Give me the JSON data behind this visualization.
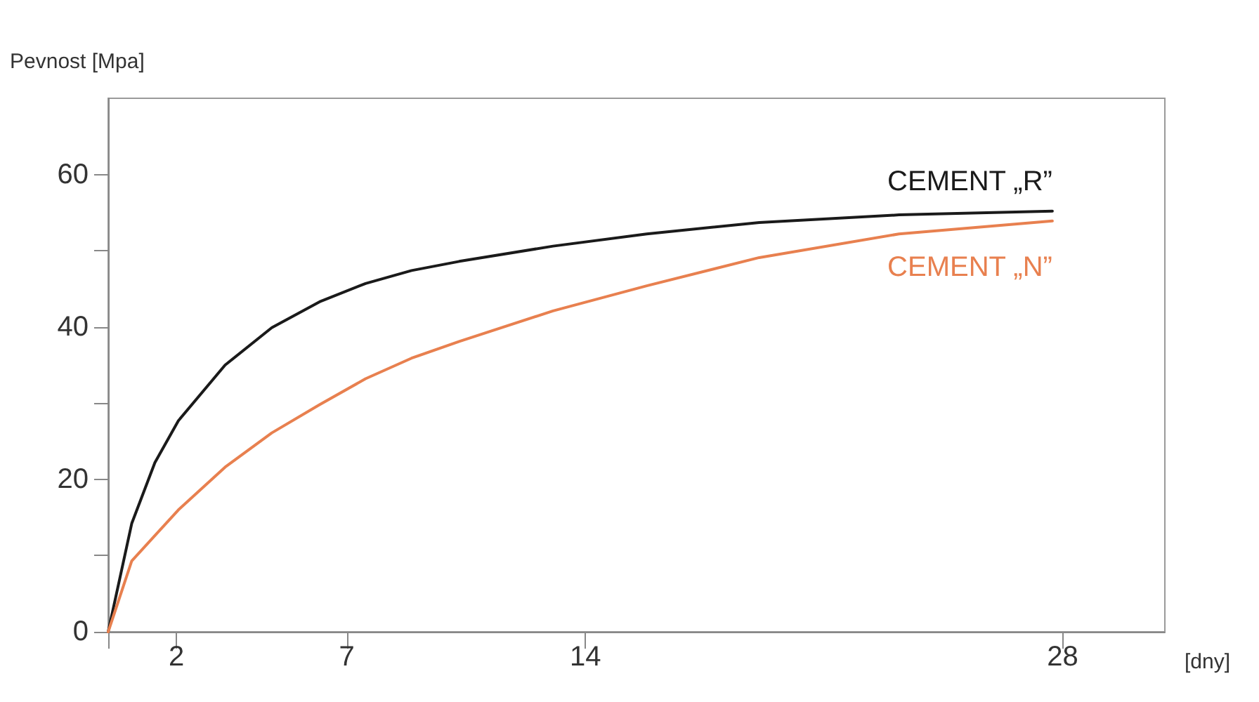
{
  "chart_data": {
    "type": "line",
    "ylabel": "Pevnost [Mpa]",
    "xlabel": "[dny]",
    "xlim": [
      0,
      31
    ],
    "ylim": [
      0,
      70
    ],
    "xticks": [
      {
        "value": 0,
        "label": null
      },
      2,
      7,
      14,
      28
    ],
    "yticks": [
      0,
      {
        "value": 10,
        "label": null
      },
      20,
      {
        "value": 30,
        "label": null
      },
      40,
      {
        "value": 50,
        "label": null
      },
      60
    ],
    "grid": false,
    "legend": false,
    "marker": "none",
    "line_style": "solid",
    "series": [
      {
        "name": "CEMENT „R”",
        "color": "#1a1a1a",
        "x": [
          0,
          0.69,
          1.37,
          2.06,
          3.43,
          4.8,
          6.2,
          7.55,
          8.9,
          10.3,
          13.05,
          15.8,
          19.1,
          23.2,
          27.7
        ],
        "values": [
          0,
          14.2,
          22.2,
          27.7,
          35,
          39.9,
          43.3,
          45.7,
          47.4,
          48.6,
          50.6,
          52.2,
          53.7,
          54.7,
          55.2
        ]
      },
      {
        "name": "CEMENT „N”",
        "color": "#e8804f",
        "x": [
          0,
          0.69,
          2.06,
          3.43,
          4.8,
          6.2,
          7.55,
          8.9,
          10.3,
          13.05,
          15.8,
          19.1,
          23.2,
          27.7
        ],
        "values": [
          0,
          9.3,
          16,
          21.6,
          26.1,
          29.8,
          33.2,
          35.9,
          38.1,
          42.1,
          45.4,
          49.1,
          52.2,
          53.9
        ]
      }
    ]
  }
}
